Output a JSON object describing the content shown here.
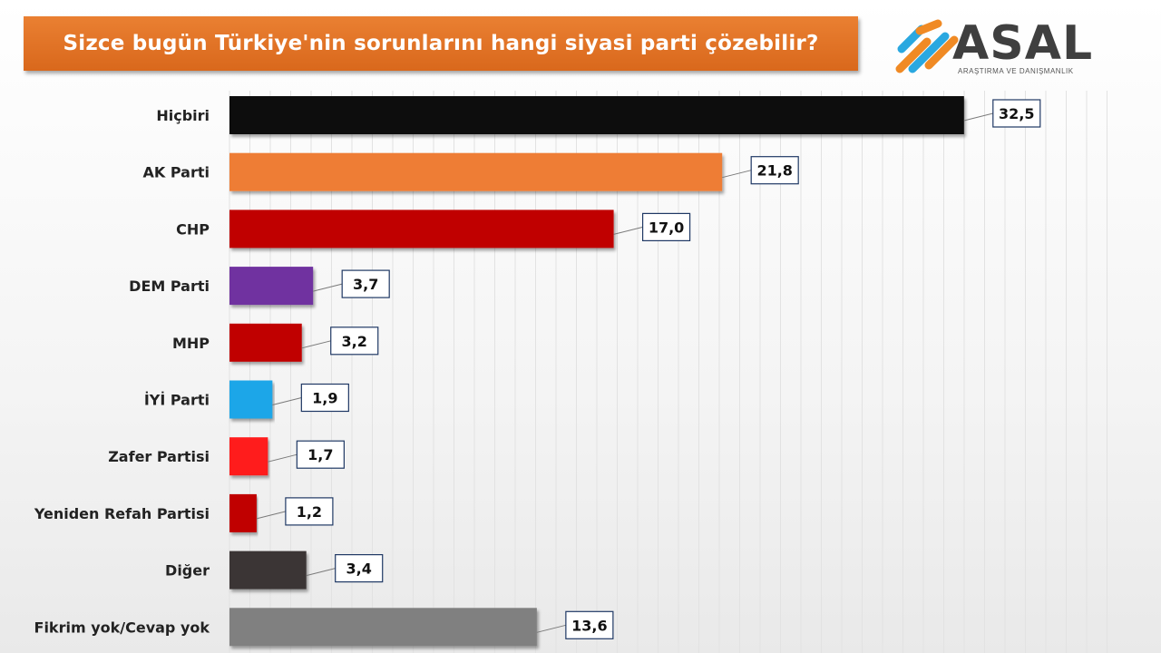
{
  "header": {
    "title": "Sizce bugün Türkiye'nin sorunlarını hangi siyasi parti çözebilir?"
  },
  "logo": {
    "wordmark": "ASAL",
    "subtitle": "ARAŞTIRMA VE DANIŞMANLIK",
    "colors": {
      "orange": "#f08a24",
      "blue": "#2aa8e0",
      "gray": "#3f3f3f"
    }
  },
  "chart_data": {
    "type": "bar",
    "orientation": "horizontal",
    "title": "Sizce bugün Türkiye'nin sorunlarını hangi siyasi parti çözebilir?",
    "categories": [
      "Hiçbiri",
      "AK Parti",
      "CHP",
      "DEM Parti",
      "MHP",
      "İYİ Parti",
      "Zafer Partisi",
      "Yeniden Refah Partisi",
      "Diğer",
      "Fikrim yok/Cevap yok"
    ],
    "values": [
      32.5,
      21.8,
      17.0,
      3.7,
      3.2,
      1.9,
      1.7,
      1.2,
      3.4,
      13.6
    ],
    "value_labels": [
      "32,5",
      "21,8",
      "17,0",
      "3,7",
      "3,2",
      "1,9",
      "1,7",
      "1,2",
      "3,4",
      "13,6"
    ],
    "colors": [
      "#0a0a0a",
      "#ee7d35",
      "#c00000",
      "#7030a0",
      "#c00000",
      "#1fa6e8",
      "#ff1a1a",
      "#c00000",
      "#3b3535",
      "#808080"
    ],
    "xlim": [
      0,
      36
    ],
    "grid": "vertical",
    "legend": "none"
  }
}
